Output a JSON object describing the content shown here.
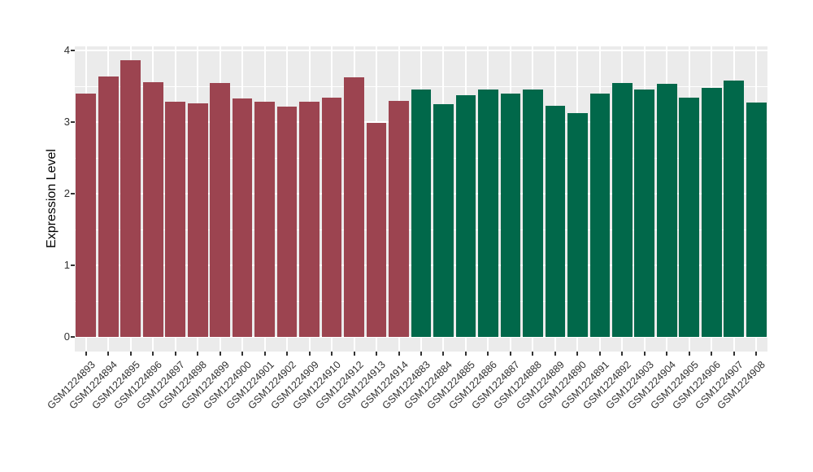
{
  "chart_data": {
    "type": "bar",
    "title": "",
    "xlabel": "",
    "ylabel": "Expression Level",
    "ylim": [
      0,
      4.06
    ],
    "yticks": [
      0,
      1,
      2,
      3,
      4
    ],
    "yticks_minor": [
      0.5,
      1.5,
      2.5,
      3.5
    ],
    "legend": "none",
    "grid": "white major and minor horizontal lines plus vertical category lines on gray panel",
    "panel_bg": "#EBEBEB",
    "grid_color": "#FFFFFF",
    "tick_color": "#333333",
    "x_label_rotation_deg": 45,
    "group_colors": {
      "red": "#9C4450",
      "green": "#01684A"
    },
    "bars": [
      {
        "label": "GSM1224893",
        "value": 3.4,
        "group": "red"
      },
      {
        "label": "GSM1224894",
        "value": 3.64,
        "group": "red"
      },
      {
        "label": "GSM1224895",
        "value": 3.86,
        "group": "red"
      },
      {
        "label": "GSM1224896",
        "value": 3.56,
        "group": "red"
      },
      {
        "label": "GSM1224897",
        "value": 3.28,
        "group": "red"
      },
      {
        "label": "GSM1224898",
        "value": 3.26,
        "group": "red"
      },
      {
        "label": "GSM1224899",
        "value": 3.54,
        "group": "red"
      },
      {
        "label": "GSM1224900",
        "value": 3.33,
        "group": "red"
      },
      {
        "label": "GSM1224901",
        "value": 3.28,
        "group": "red"
      },
      {
        "label": "GSM1224902",
        "value": 3.22,
        "group": "red"
      },
      {
        "label": "GSM1224909",
        "value": 3.28,
        "group": "red"
      },
      {
        "label": "GSM1224910",
        "value": 3.34,
        "group": "red"
      },
      {
        "label": "GSM1224912",
        "value": 3.62,
        "group": "red"
      },
      {
        "label": "GSM1224913",
        "value": 2.99,
        "group": "red"
      },
      {
        "label": "GSM1224914",
        "value": 3.3,
        "group": "red"
      },
      {
        "label": "GSM1224883",
        "value": 3.46,
        "group": "green"
      },
      {
        "label": "GSM1224884",
        "value": 3.25,
        "group": "green"
      },
      {
        "label": "GSM1224885",
        "value": 3.38,
        "group": "green"
      },
      {
        "label": "GSM1224886",
        "value": 3.45,
        "group": "green"
      },
      {
        "label": "GSM1224887",
        "value": 3.4,
        "group": "green"
      },
      {
        "label": "GSM1224888",
        "value": 3.45,
        "group": "green"
      },
      {
        "label": "GSM1224889",
        "value": 3.23,
        "group": "green"
      },
      {
        "label": "GSM1224890",
        "value": 3.12,
        "group": "green"
      },
      {
        "label": "GSM1224891",
        "value": 3.4,
        "group": "green"
      },
      {
        "label": "GSM1224892",
        "value": 3.54,
        "group": "green"
      },
      {
        "label": "GSM1224903",
        "value": 3.46,
        "group": "green"
      },
      {
        "label": "GSM1224904",
        "value": 3.53,
        "group": "green"
      },
      {
        "label": "GSM1224905",
        "value": 3.34,
        "group": "green"
      },
      {
        "label": "GSM1224906",
        "value": 3.48,
        "group": "green"
      },
      {
        "label": "GSM1224907",
        "value": 3.58,
        "group": "green"
      },
      {
        "label": "GSM1224908",
        "value": 3.27,
        "group": "green"
      }
    ]
  }
}
